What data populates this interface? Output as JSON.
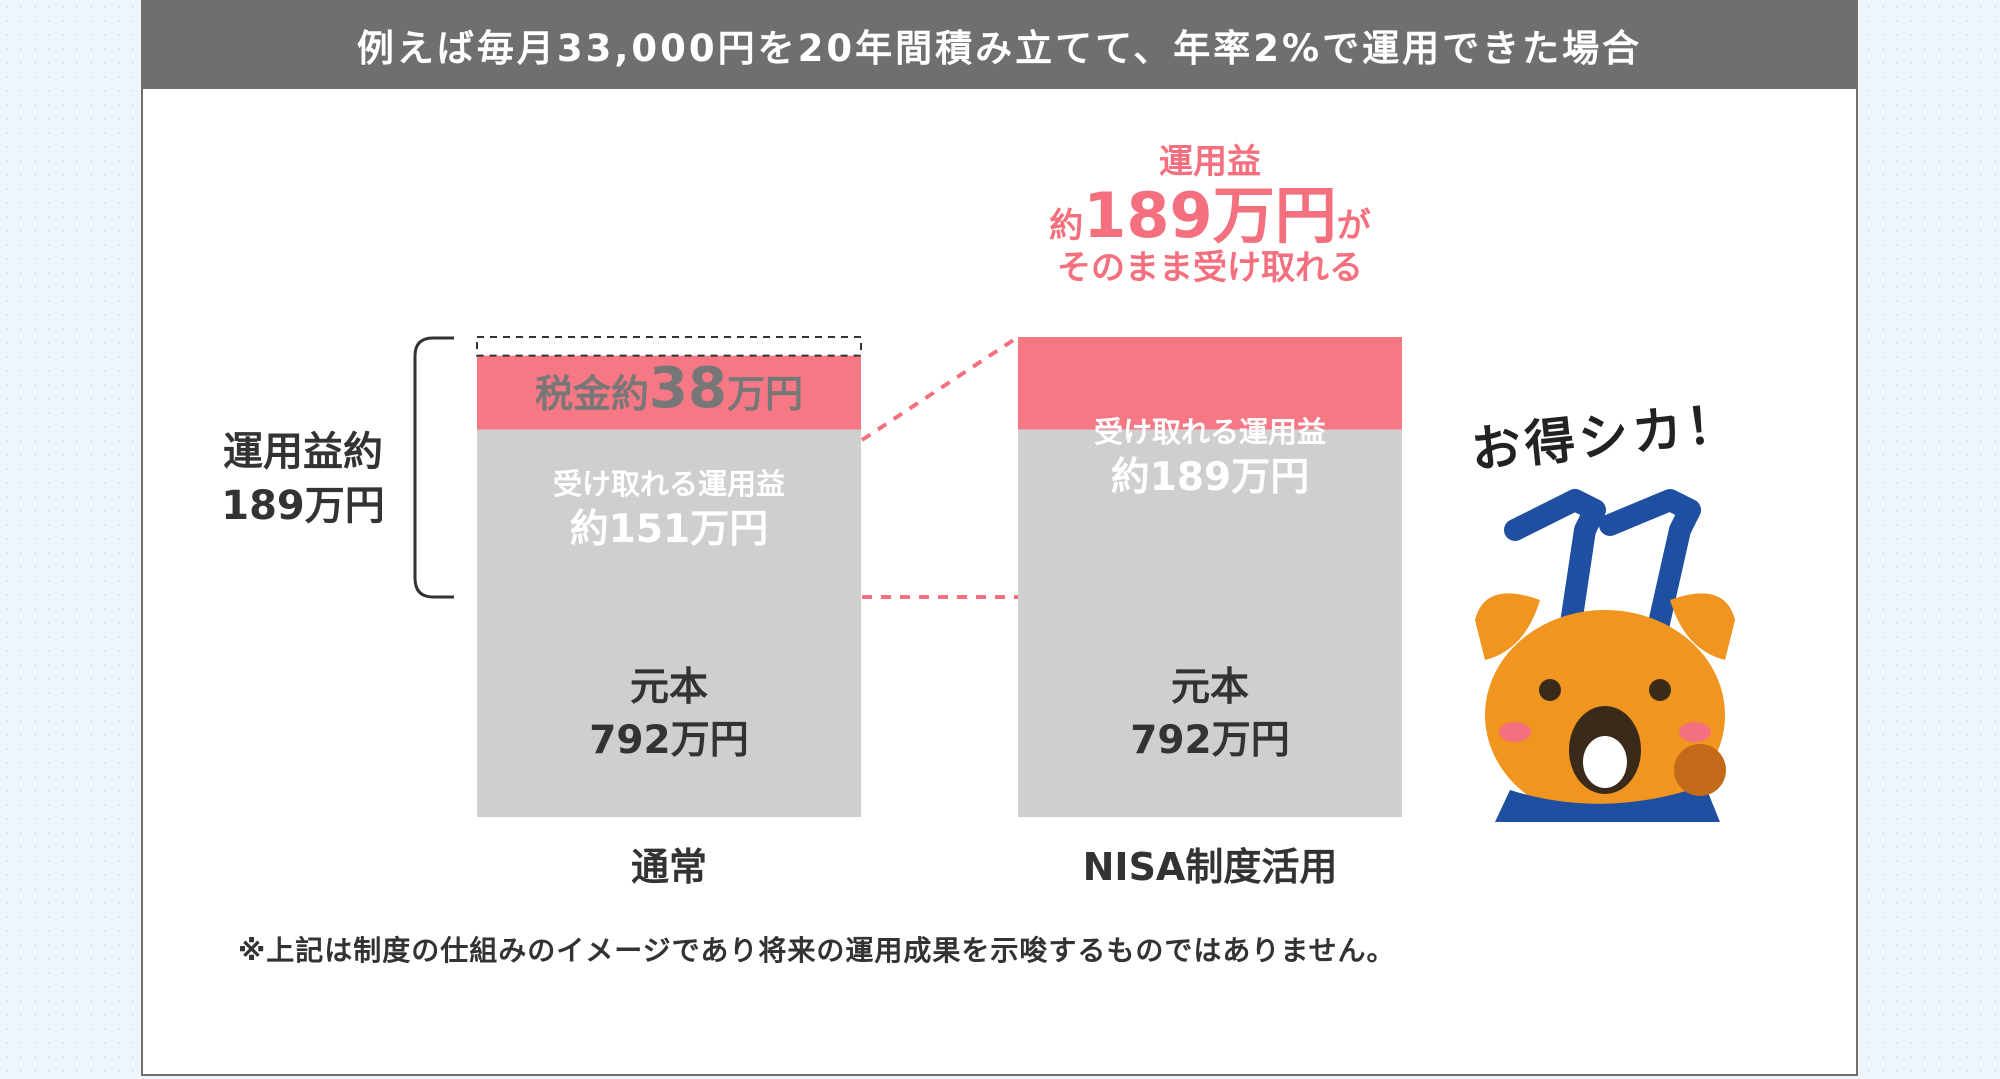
{
  "header": {
    "title": "例えば毎月33,000円を20年間積み立てて、年率2%で運用できた場合"
  },
  "brace_label": {
    "line1": "運用益約",
    "line2": "189万円"
  },
  "tax_box": {
    "prefix": "税金約",
    "value": "38",
    "unit": "万円"
  },
  "top_annotation": {
    "line1": "運用益",
    "prefix": "約",
    "value": "189万円",
    "suffix": "が",
    "line3": "そのまま受け取れる"
  },
  "mascot": {
    "caption": "お得シカ！"
  },
  "footnote": "※上記は制度の仕組みのイメージであり将来の運用成果を示唆するものではありません。",
  "chart_data": {
    "type": "bar",
    "stacked": true,
    "unit": "万円",
    "categories": [
      "通常",
      "NISA制度活用"
    ],
    "series": [
      {
        "values": [
          792,
          792
        ],
        "labels": [
          "元本\n792万円",
          "元本\n792万円"
        ],
        "color": "#cfcfcf"
      },
      {
        "values": [
          151,
          189
        ],
        "labels": [
          "受け取れる運用益\n約151万円",
          "受け取れる運用益\n約189万円"
        ],
        "color": "#f57884"
      },
      {
        "values": [
          38,
          0
        ],
        "labels": [
          "税金約38万円",
          ""
        ],
        "color": "#ffffff"
      }
    ],
    "gridlines": false,
    "legend": "none"
  }
}
